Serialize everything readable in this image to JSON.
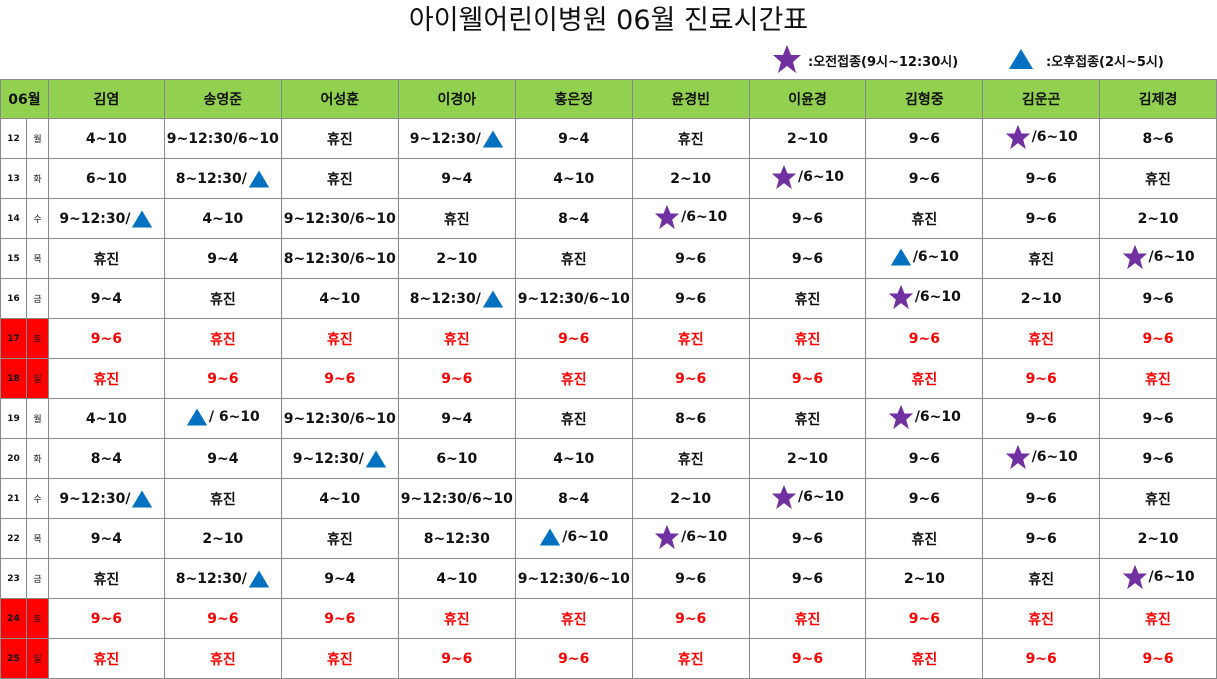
{
  "title": "아이웰어린이병원  06월  진료시간표",
  "legend": {
    "am_label": ":오전접종(9시~12:30시)",
    "pm_label": ":오후접종(2시~5시)",
    "star_color": "#7030a0",
    "triangle_color": "#0070c0"
  },
  "colors": {
    "header_bg": "#92d050",
    "weekend_bg": "#ff0000",
    "weekend_text": "#ff0000"
  },
  "month_label": "06월",
  "doctors": [
    "김염",
    "송영준",
    "어성훈",
    "이경아",
    "홍은정",
    "윤경빈",
    "이윤경",
    "김형중",
    "김운곤",
    "김제경"
  ],
  "rows": [
    {
      "day": "12",
      "wd": "월",
      "weekend": false,
      "cells": [
        "4~10",
        "9~12:30/6~10",
        "휴진",
        "9~12:30/[tri]",
        "9~4",
        "휴진",
        "2~10",
        "9~6",
        "[star]/6~10",
        "8~6"
      ]
    },
    {
      "day": "13",
      "wd": "화",
      "weekend": false,
      "cells": [
        "6~10",
        "8~12:30/[tri]",
        "휴진",
        "9~4",
        "4~10",
        "2~10",
        "[star]/6~10",
        "9~6",
        "9~6",
        "휴진"
      ]
    },
    {
      "day": "14",
      "wd": "수",
      "weekend": false,
      "cells": [
        "9~12:30/[tri]",
        "4~10",
        "9~12:30/6~10",
        "휴진",
        "8~4",
        "[star]/6~10",
        "9~6",
        "휴진",
        "9~6",
        "2~10"
      ]
    },
    {
      "day": "15",
      "wd": "목",
      "weekend": false,
      "cells": [
        "휴진",
        "9~4",
        "8~12:30/6~10",
        "2~10",
        "휴진",
        "9~6",
        "9~6",
        "[tri]/6~10",
        "휴진",
        "[star]/6~10"
      ]
    },
    {
      "day": "16",
      "wd": "금",
      "weekend": false,
      "cells": [
        "9~4",
        "휴진",
        "4~10",
        "8~12:30/[tri]",
        "9~12:30/6~10",
        "9~6",
        "휴진",
        "[star]/6~10",
        "2~10",
        "9~6"
      ]
    },
    {
      "day": "17",
      "wd": "토",
      "weekend": true,
      "cells": [
        "9~6",
        "휴진",
        "휴진",
        "휴진",
        "9~6",
        "휴진",
        "휴진",
        "9~6",
        "휴진",
        "9~6"
      ]
    },
    {
      "day": "18",
      "wd": "일",
      "weekend": true,
      "cells": [
        "휴진",
        "9~6",
        "9~6",
        "9~6",
        "휴진",
        "9~6",
        "9~6",
        "휴진",
        "9~6",
        "휴진"
      ]
    },
    {
      "day": "19",
      "wd": "월",
      "weekend": false,
      "cells": [
        "4~10",
        "[tri] / 6~10",
        "9~12:30/6~10",
        "9~4",
        "휴진",
        "8~6",
        "휴진",
        "[star]/6~10",
        "9~6",
        "9~6"
      ]
    },
    {
      "day": "20",
      "wd": "화",
      "weekend": false,
      "cells": [
        "8~4",
        "9~4",
        "9~12:30/[tri]",
        "6~10",
        "4~10",
        "휴진",
        "2~10",
        "9~6",
        "[star]/6~10",
        "9~6"
      ]
    },
    {
      "day": "21",
      "wd": "수",
      "weekend": false,
      "cells": [
        "9~12:30/[tri]",
        "휴진",
        "4~10",
        "9~12:30/6~10",
        "8~4",
        "2~10",
        "[star]/6~10",
        "9~6",
        "9~6",
        "휴진"
      ]
    },
    {
      "day": "22",
      "wd": "목",
      "weekend": false,
      "cells": [
        "9~4",
        "2~10",
        "휴진",
        "8~12:30",
        "[tri]/6~10",
        "[star]/6~10",
        "9~6",
        "휴진",
        "9~6",
        "2~10"
      ]
    },
    {
      "day": "23",
      "wd": "금",
      "weekend": false,
      "cells": [
        "휴진",
        "8~12:30/[tri]",
        "9~4",
        "4~10",
        "9~12:30/6~10",
        "9~6",
        "9~6",
        "2~10",
        "휴진",
        "[star]/6~10"
      ]
    },
    {
      "day": "24",
      "wd": "토",
      "weekend": true,
      "cells": [
        "9~6",
        "9~6",
        "9~6",
        "휴진",
        "휴진",
        "9~6",
        "휴진",
        "9~6",
        "휴진",
        "휴진"
      ]
    },
    {
      "day": "25",
      "wd": "일",
      "weekend": true,
      "cells": [
        "휴진",
        "휴진",
        "휴진",
        "9~6",
        "9~6",
        "휴진",
        "9~6",
        "휴진",
        "9~6",
        "9~6"
      ]
    }
  ]
}
